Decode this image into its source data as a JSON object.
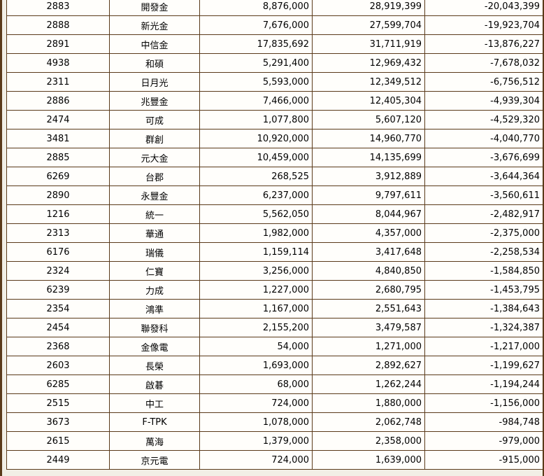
{
  "rows": [
    {
      "code": "2883",
      "name": "開發金",
      "a": "8,876,000",
      "b": "28,919,399",
      "diff": "-20,043,399"
    },
    {
      "code": "2888",
      "name": "新光金",
      "a": "7,676,000",
      "b": "27,599,704",
      "diff": "-19,923,704"
    },
    {
      "code": "2891",
      "name": "中信金",
      "a": "17,835,692",
      "b": "31,711,919",
      "diff": "-13,876,227"
    },
    {
      "code": "4938",
      "name": "和碩",
      "a": "5,291,400",
      "b": "12,969,432",
      "diff": "-7,678,032"
    },
    {
      "code": "2311",
      "name": "日月光",
      "a": "5,593,000",
      "b": "12,349,512",
      "diff": "-6,756,512"
    },
    {
      "code": "2886",
      "name": "兆豐金",
      "a": "7,466,000",
      "b": "12,405,304",
      "diff": "-4,939,304"
    },
    {
      "code": "2474",
      "name": "可成",
      "a": "1,077,800",
      "b": "5,607,120",
      "diff": "-4,529,320"
    },
    {
      "code": "3481",
      "name": "群創",
      "a": "10,920,000",
      "b": "14,960,770",
      "diff": "-4,040,770"
    },
    {
      "code": "2885",
      "name": "元大金",
      "a": "10,459,000",
      "b": "14,135,699",
      "diff": "-3,676,699"
    },
    {
      "code": "6269",
      "name": "台郡",
      "a": "268,525",
      "b": "3,912,889",
      "diff": "-3,644,364"
    },
    {
      "code": "2890",
      "name": "永豐金",
      "a": "6,237,000",
      "b": "9,797,611",
      "diff": "-3,560,611"
    },
    {
      "code": "1216",
      "name": "統一",
      "a": "5,562,050",
      "b": "8,044,967",
      "diff": "-2,482,917"
    },
    {
      "code": "2313",
      "name": "華通",
      "a": "1,982,000",
      "b": "4,357,000",
      "diff": "-2,375,000"
    },
    {
      "code": "6176",
      "name": "瑞儀",
      "a": "1,159,114",
      "b": "3,417,648",
      "diff": "-2,258,534"
    },
    {
      "code": "2324",
      "name": "仁寶",
      "a": "3,256,000",
      "b": "4,840,850",
      "diff": "-1,584,850"
    },
    {
      "code": "6239",
      "name": "力成",
      "a": "1,227,000",
      "b": "2,680,795",
      "diff": "-1,453,795"
    },
    {
      "code": "2354",
      "name": "鴻準",
      "a": "1,167,000",
      "b": "2,551,643",
      "diff": "-1,384,643"
    },
    {
      "code": "2454",
      "name": "聯發科",
      "a": "2,155,200",
      "b": "3,479,587",
      "diff": "-1,324,387"
    },
    {
      "code": "2368",
      "name": "金像電",
      "a": "54,000",
      "b": "1,271,000",
      "diff": "-1,217,000"
    },
    {
      "code": "2603",
      "name": "長榮",
      "a": "1,693,000",
      "b": "2,892,627",
      "diff": "-1,199,627"
    },
    {
      "code": "6285",
      "name": "啟碁",
      "a": "68,000",
      "b": "1,262,244",
      "diff": "-1,194,244"
    },
    {
      "code": "2515",
      "name": "中工",
      "a": "724,000",
      "b": "1,880,000",
      "diff": "-1,156,000"
    },
    {
      "code": "3673",
      "name": "F-TPK",
      "a": "1,078,000",
      "b": "2,062,748",
      "diff": "-984,748"
    },
    {
      "code": "2615",
      "name": "萬海",
      "a": "1,379,000",
      "b": "2,358,000",
      "diff": "-979,000"
    },
    {
      "code": "2449",
      "name": "京元電",
      "a": "724,000",
      "b": "1,639,000",
      "diff": "-915,000"
    }
  ]
}
